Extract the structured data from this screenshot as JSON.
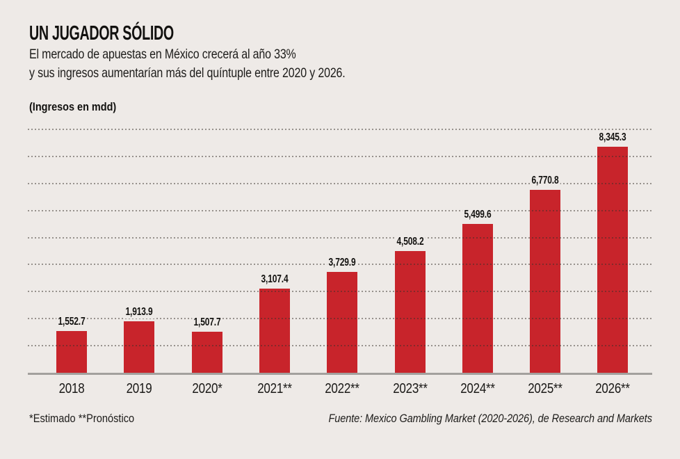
{
  "header": {
    "title": "UN JUGADOR SÓLIDO",
    "subtitle1": "El mercado de apuestas en México crecerá al año 33%",
    "subtitle2": "y sus ingresos aumentarían más del quíntuple entre 2020 y 2026.",
    "units": "(Ingresos en mdd)"
  },
  "footer": {
    "notes": "*Estimado **Pronóstico",
    "source": "Fuente: Mexico Gambling Market (2020-2026), de Research and Markets"
  },
  "colors": {
    "background": "#eeeae7",
    "bar": "#c8242b",
    "baseline": "#a3a09d",
    "text": "#12110f"
  },
  "chart_data": {
    "type": "bar",
    "title": "UN JUGADOR SÓLIDO",
    "ylabel": "(Ingresos en mdd)",
    "xlabel": "",
    "categories": [
      "2018",
      "2019",
      "2020*",
      "2021**",
      "2022**",
      "2023**",
      "2024**",
      "2025**",
      "2026**"
    ],
    "values": [
      1552.7,
      1913.9,
      1507.7,
      3107.4,
      3729.9,
      4508.2,
      5499.6,
      6770.8,
      8345.3
    ],
    "value_labels": [
      "1,552.7",
      "1,913.9",
      "1,507.7",
      "3,107.4",
      "3,729.9",
      "4,508.2",
      "5,499.6",
      "6,770.8",
      "8,345.3"
    ],
    "ylim": [
      0,
      9000
    ],
    "gridline_step": 1000,
    "grid": "dotted-horizontal",
    "legend_position": "none",
    "bar_color": "#c8242b"
  }
}
